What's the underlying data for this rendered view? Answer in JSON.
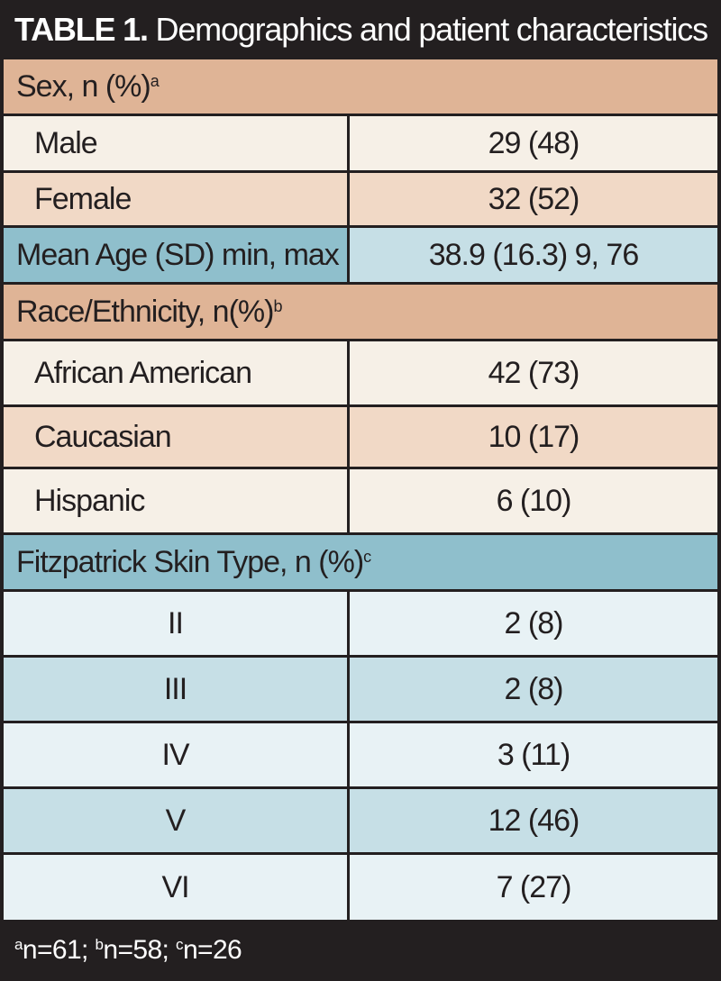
{
  "title": {
    "bold": "TABLE 1.",
    "text": " Demographics and patient characteristics"
  },
  "sections": {
    "sex": {
      "label": "Sex, n (%)",
      "sup": "a"
    },
    "age": {
      "label": "Mean Age (SD) min, max",
      "value": "38.9 (16.3) 9, 76"
    },
    "race": {
      "label": "Race/Ethnicity, n(%)",
      "sup": "b"
    },
    "fitz": {
      "label": "Fitzpatrick Skin Type, n (%)",
      "sup": "c"
    }
  },
  "sex_rows": [
    {
      "label": "Male",
      "value": "29 (48)"
    },
    {
      "label": "Female",
      "value": "32 (52)"
    }
  ],
  "race_rows": [
    {
      "label": "African American",
      "value": "42 (73)"
    },
    {
      "label": "Caucasian",
      "value": "10 (17)"
    },
    {
      "label": "Hispanic",
      "value": "6 (10)"
    }
  ],
  "fitz_rows": [
    {
      "label": "II",
      "value": "2 (8)"
    },
    {
      "label": "III",
      "value": "2 (8)"
    },
    {
      "label": "IV",
      "value": "3 (11)"
    },
    {
      "label": "V",
      "value": "12 (46)"
    },
    {
      "label": "VI",
      "value": "7 (27)"
    }
  ],
  "footnote": [
    {
      "sup": "a",
      "text": "n=61; "
    },
    {
      "sup": "b",
      "text": "n=58; "
    },
    {
      "sup": "c",
      "text": "n=26"
    }
  ],
  "colors": {
    "header_dark": "#231f20",
    "tan_section": "#dfb496",
    "cream_light": "#f6f0e7",
    "tan_light": "#f1d9c6",
    "blue_dark": "#8fbfcc",
    "blue_mid": "#c6dfe6",
    "blue_light": "#e8f2f5"
  }
}
